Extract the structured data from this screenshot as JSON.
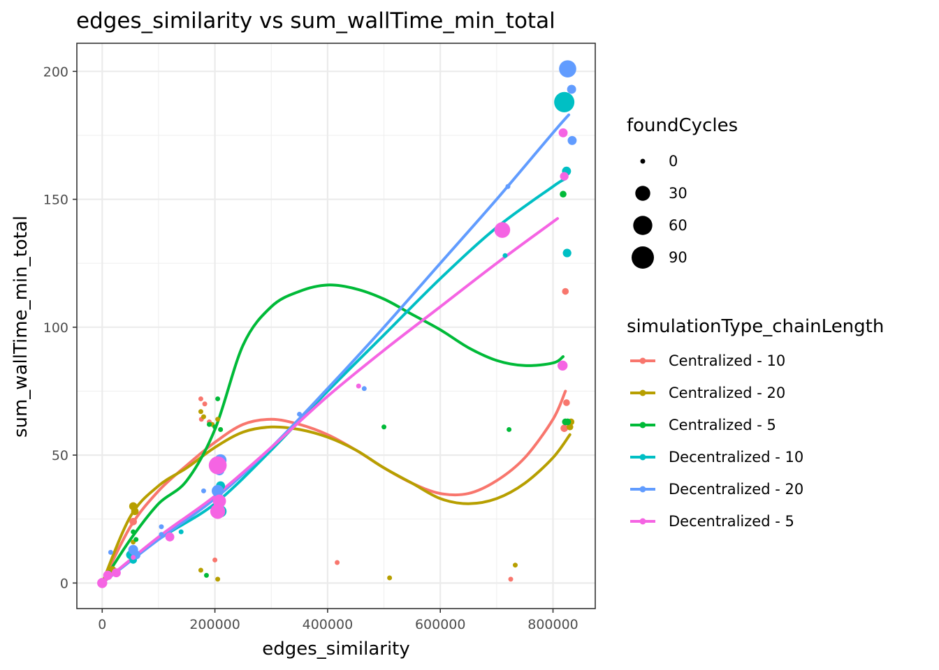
{
  "chart_data": {
    "type": "scatter",
    "title": "edges_similarity  vs  sum_wallTime_min_total",
    "xlabel": "edges_similarity",
    "ylabel": "sum_wallTime_min_total",
    "xlim": [
      -45000,
      875000
    ],
    "ylim": [
      -10,
      211
    ],
    "x_ticks": [
      0,
      200000,
      400000,
      600000,
      800000
    ],
    "x_tick_labels": [
      "0",
      "200000",
      "400000",
      "600000",
      "800000"
    ],
    "y_ticks": [
      0,
      50,
      100,
      150,
      200
    ],
    "y_tick_labels": [
      "0",
      "50",
      "100",
      "150",
      "200"
    ],
    "grid": true,
    "size_legend": {
      "title": "foundCycles",
      "entries": [
        {
          "label": "0",
          "value": 0
        },
        {
          "label": "30",
          "value": 30
        },
        {
          "label": "60",
          "value": 60
        },
        {
          "label": "90",
          "value": 90
        }
      ]
    },
    "color_legend_title": "simulationType_chainLength",
    "series": [
      {
        "name": "Centralized - 10",
        "color": "#F8766D",
        "points": [
          [
            0,
            0,
            0
          ],
          [
            8000,
            2,
            0
          ],
          [
            15000,
            4,
            0
          ],
          [
            55000,
            24,
            2
          ],
          [
            175000,
            72,
            0
          ],
          [
            182000,
            70,
            0
          ],
          [
            176000,
            64,
            0
          ],
          [
            190000,
            63,
            0
          ],
          [
            200000,
            9,
            0
          ],
          [
            417000,
            8,
            0
          ],
          [
            725000,
            1.5,
            0
          ],
          [
            822000,
            114,
            1
          ],
          [
            824000,
            70.5,
            1
          ],
          [
            820000,
            60.5,
            2
          ]
        ],
        "smooth": [
          [
            0,
            0
          ],
          [
            50000,
            22
          ],
          [
            100000,
            36
          ],
          [
            150000,
            46
          ],
          [
            200000,
            55
          ],
          [
            250000,
            62
          ],
          [
            300000,
            64
          ],
          [
            350000,
            62
          ],
          [
            400000,
            58
          ],
          [
            450000,
            52
          ],
          [
            500000,
            45
          ],
          [
            550000,
            39
          ],
          [
            600000,
            35
          ],
          [
            650000,
            35
          ],
          [
            700000,
            40
          ],
          [
            750000,
            49
          ],
          [
            800000,
            64
          ],
          [
            822000,
            75
          ]
        ]
      },
      {
        "name": "Centralized - 20",
        "color": "#B79F00",
        "points": [
          [
            0,
            0,
            0
          ],
          [
            10000,
            3,
            2
          ],
          [
            18000,
            5,
            3
          ],
          [
            55000,
            30,
            3
          ],
          [
            58000,
            28,
            2
          ],
          [
            55000,
            16,
            0
          ],
          [
            175000,
            67,
            0
          ],
          [
            180000,
            65,
            0
          ],
          [
            195000,
            62,
            0
          ],
          [
            205000,
            64,
            0
          ],
          [
            210000,
            60,
            0
          ],
          [
            175000,
            5,
            0
          ],
          [
            205000,
            1.5,
            0
          ],
          [
            510000,
            2,
            0
          ],
          [
            733000,
            7,
            0
          ],
          [
            830000,
            61,
            1
          ],
          [
            832000,
            63,
            1
          ]
        ],
        "smooth": [
          [
            0,
            0
          ],
          [
            50000,
            26
          ],
          [
            100000,
            38
          ],
          [
            150000,
            45
          ],
          [
            200000,
            53
          ],
          [
            250000,
            59
          ],
          [
            300000,
            61
          ],
          [
            350000,
            60
          ],
          [
            400000,
            57
          ],
          [
            450000,
            52
          ],
          [
            500000,
            45
          ],
          [
            550000,
            39
          ],
          [
            600000,
            33
          ],
          [
            650000,
            31
          ],
          [
            700000,
            33
          ],
          [
            750000,
            39
          ],
          [
            800000,
            49
          ],
          [
            830000,
            58
          ]
        ]
      },
      {
        "name": "Centralized - 5",
        "color": "#00BA38",
        "points": [
          [
            0,
            0,
            0
          ],
          [
            12000,
            4,
            0
          ],
          [
            55000,
            20,
            0
          ],
          [
            60000,
            17,
            0
          ],
          [
            205000,
            72,
            0
          ],
          [
            190000,
            62,
            0
          ],
          [
            200000,
            61,
            0
          ],
          [
            210000,
            60,
            0
          ],
          [
            185000,
            3,
            0
          ],
          [
            500000,
            61,
            0
          ],
          [
            722000,
            60,
            0
          ],
          [
            818000,
            152,
            1
          ],
          [
            822000,
            63,
            1
          ],
          [
            826000,
            63,
            1
          ]
        ],
        "smooth": [
          [
            0,
            0
          ],
          [
            50000,
            17
          ],
          [
            100000,
            31
          ],
          [
            150000,
            40
          ],
          [
            200000,
            60
          ],
          [
            250000,
            93
          ],
          [
            300000,
            108
          ],
          [
            350000,
            114
          ],
          [
            400000,
            116.5
          ],
          [
            450000,
            115
          ],
          [
            500000,
            111
          ],
          [
            550000,
            105
          ],
          [
            600000,
            99
          ],
          [
            650000,
            92
          ],
          [
            700000,
            87
          ],
          [
            750000,
            85
          ],
          [
            800000,
            86
          ],
          [
            818000,
            88.5
          ]
        ]
      },
      {
        "name": "Decentralized - 10",
        "color": "#00BFC4",
        "points": [
          [
            0,
            0,
            0
          ],
          [
            10000,
            3,
            2
          ],
          [
            50000,
            11,
            4
          ],
          [
            55000,
            9,
            2
          ],
          [
            140000,
            20,
            0
          ],
          [
            205000,
            30,
            4
          ],
          [
            210000,
            28,
            15
          ],
          [
            715000,
            128,
            0
          ],
          [
            820000,
            188,
            70
          ],
          [
            824000,
            161,
            5
          ],
          [
            825000,
            129,
            4
          ],
          [
            210000,
            38,
            5
          ]
        ],
        "smooth": [
          [
            0,
            0
          ],
          [
            100000,
            17
          ],
          [
            200000,
            31
          ],
          [
            300000,
            52
          ],
          [
            400000,
            75
          ],
          [
            500000,
            97
          ],
          [
            600000,
            119
          ],
          [
            700000,
            139
          ],
          [
            800000,
            155
          ],
          [
            822000,
            158
          ]
        ]
      },
      {
        "name": "Decentralized - 20",
        "color": "#619CFF",
        "points": [
          [
            0,
            0,
            0
          ],
          [
            15000,
            12,
            0
          ],
          [
            55000,
            13,
            7
          ],
          [
            60000,
            11,
            5
          ],
          [
            105000,
            22,
            0
          ],
          [
            105000,
            19,
            0
          ],
          [
            180000,
            36,
            0
          ],
          [
            205000,
            36,
            15
          ],
          [
            210000,
            48,
            15
          ],
          [
            350000,
            66,
            0
          ],
          [
            465000,
            76,
            0
          ],
          [
            720000,
            155,
            0
          ],
          [
            826000,
            201,
            45
          ],
          [
            833000,
            193,
            5
          ],
          [
            834000,
            173,
            5
          ],
          [
            208000,
            44,
            7
          ]
        ],
        "smooth": [
          [
            0,
            0
          ],
          [
            100000,
            17
          ],
          [
            200000,
            33
          ],
          [
            300000,
            53
          ],
          [
            400000,
            76
          ],
          [
            500000,
            100
          ],
          [
            600000,
            125
          ],
          [
            700000,
            150
          ],
          [
            800000,
            176
          ],
          [
            828000,
            183
          ]
        ]
      },
      {
        "name": "Decentralized - 5",
        "color": "#F564E3",
        "points": [
          [
            0,
            0,
            8
          ],
          [
            10000,
            3,
            6
          ],
          [
            25000,
            4,
            5
          ],
          [
            55000,
            10,
            0
          ],
          [
            120000,
            18,
            5
          ],
          [
            205000,
            28,
            30
          ],
          [
            208000,
            32,
            20
          ],
          [
            205000,
            46,
            50
          ],
          [
            455000,
            77,
            0
          ],
          [
            710000,
            138,
            35
          ],
          [
            818000,
            176,
            5
          ],
          [
            820000,
            159,
            4
          ],
          [
            817000,
            85,
            8
          ]
        ],
        "smooth": [
          [
            0,
            0
          ],
          [
            100000,
            18
          ],
          [
            200000,
            34
          ],
          [
            300000,
            53
          ],
          [
            400000,
            73
          ],
          [
            500000,
            91
          ],
          [
            600000,
            108
          ],
          [
            700000,
            125
          ],
          [
            808000,
            142.5
          ]
        ]
      }
    ]
  }
}
